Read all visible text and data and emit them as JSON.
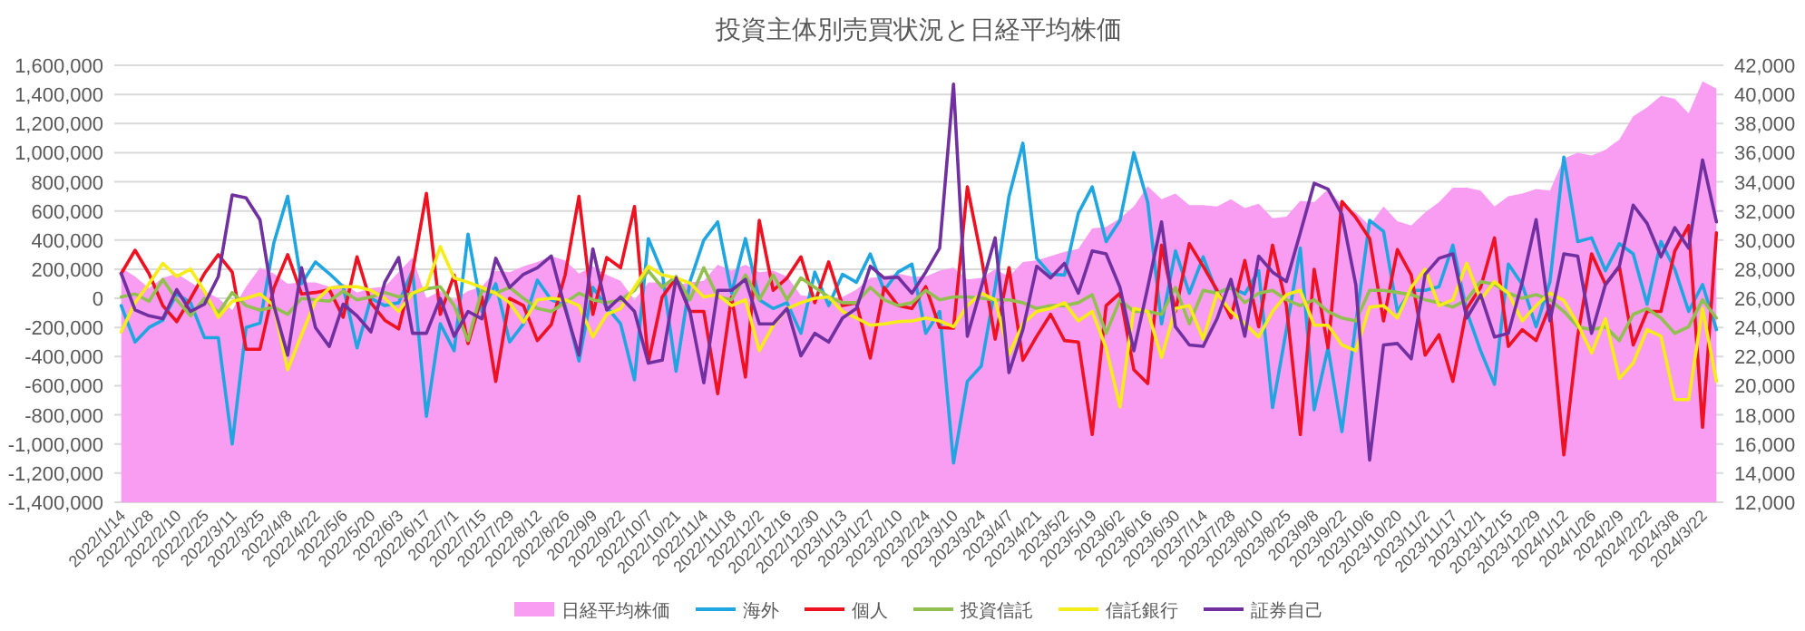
{
  "chart_data": {
    "type": "line",
    "title": "投資主体別売買状況と日経平均株価",
    "categories": [
      "2022/1/14",
      null,
      "2022/1/28",
      null,
      "2022/2/10",
      null,
      "2022/2/25",
      null,
      "2022/3/11",
      null,
      "2022/3/25",
      null,
      "2022/4/8",
      null,
      "2022/4/22",
      null,
      "2022/5/6",
      null,
      "2022/5/20",
      null,
      "2022/6/3",
      null,
      "2022/6/17",
      null,
      "2022/7/1",
      null,
      "2022/7/15",
      null,
      "2022/7/29",
      null,
      "2022/8/12",
      null,
      "2022/8/26",
      null,
      "2022/9/9",
      null,
      "2022/9/22",
      null,
      "2022/10/7",
      null,
      "2022/10/21",
      null,
      "2022/11/4",
      null,
      "2022/11/18",
      null,
      "2022/12/2",
      null,
      "2022/12/16",
      null,
      "2022/12/30",
      null,
      "2023/1/13",
      null,
      "2023/1/27",
      null,
      "2023/2/10",
      null,
      "2023/2/24",
      null,
      "2023/3/10",
      null,
      "2023/3/24",
      null,
      "2023/4/7",
      null,
      "2023/4/21",
      null,
      "2023/5/2",
      null,
      "2023/5/19",
      null,
      "2023/6/2",
      null,
      "2023/6/16",
      null,
      "2023/6/30",
      null,
      "2023/7/14",
      null,
      "2023/7/28",
      null,
      "2023/8/10",
      null,
      "2023/8/25",
      null,
      "2023/9/8",
      null,
      "2023/9/22",
      null,
      "2023/10/6",
      null,
      "2023/10/20",
      null,
      "2023/11/2",
      null,
      "2023/11/17",
      null,
      "2023/12/1",
      null,
      "2023/12/15",
      null,
      "2023/12/29",
      null,
      "2024/1/12",
      null,
      "2024/1/26",
      null,
      "2024/2/9",
      null,
      "2024/2/22",
      null,
      "2024/3/8",
      null,
      "2024/3/22",
      null
    ],
    "ylim": [
      -1400000,
      1600000
    ],
    "yticks": [
      {
        "value": -1400000,
        "label": "-1,400,000"
      },
      {
        "value": -1200000,
        "label": "-1,200,000"
      },
      {
        "value": -1000000,
        "label": "-1,000,000"
      },
      {
        "value": -800000,
        "label": "-800,000"
      },
      {
        "value": -600000,
        "label": "-600,000"
      },
      {
        "value": -400000,
        "label": "-400,000"
      },
      {
        "value": -200000,
        "label": "-200,000"
      },
      0,
      {
        "value": 200000,
        "label": "200,000"
      },
      {
        "value": 400000,
        "label": "400,000"
      },
      {
        "value": 600000,
        "label": "600,000"
      },
      {
        "value": 800000,
        "label": "800,000"
      },
      {
        "value": 1000000,
        "label": "1,000,000"
      },
      {
        "value": 1200000,
        "label": "1,200,000"
      },
      {
        "value": 1400000,
        "label": "1,400,000"
      },
      {
        "value": 1600000,
        "label": "1,600,000"
      }
    ],
    "y2lim": [
      12000,
      42000
    ],
    "y2ticks": [
      {
        "value": 12000,
        "label": "12,000"
      },
      {
        "value": 14000,
        "label": "14,000"
      },
      {
        "value": 16000,
        "label": "16,000"
      },
      {
        "value": 18000,
        "label": "18,000"
      },
      {
        "value": 20000,
        "label": "20,000"
      },
      {
        "value": 22000,
        "label": "22,000"
      },
      {
        "value": 24000,
        "label": "24,000"
      },
      {
        "value": 26000,
        "label": "26,000"
      },
      {
        "value": 28000,
        "label": "28,000"
      },
      {
        "value": 30000,
        "label": "30,000"
      },
      {
        "value": 32000,
        "label": "32,000"
      },
      {
        "value": 34000,
        "label": "34,000"
      },
      {
        "value": 36000,
        "label": "36,000"
      },
      {
        "value": 38000,
        "label": "38,000"
      },
      {
        "value": 40000,
        "label": "40,000"
      },
      {
        "value": 42000,
        "label": "42,000"
      }
    ],
    "grid": "y",
    "legend": "bottom",
    "marker": "none",
    "line_style": "solid",
    "series": [
      {
        "name": "日経平均株価",
        "type": "area",
        "axis": "y2",
        "color": "#f99df2",
        "values": [
          28100,
          27500,
          26700,
          27400,
          27700,
          27100,
          26500,
          26000,
          25200,
          26800,
          28100,
          27700,
          27000,
          27100,
          27100,
          26800,
          27000,
          26400,
          26700,
          26800,
          27800,
          28800,
          26000,
          26500,
          25900,
          26500,
          26800,
          27900,
          27800,
          28200,
          28500,
          28900,
          28600,
          27700,
          28200,
          27600,
          27200,
          25900,
          27100,
          27100,
          26900,
          27100,
          27200,
          28300,
          27900,
          28300,
          27800,
          27900,
          27500,
          26200,
          26100,
          26000,
          26100,
          26600,
          27400,
          27500,
          27700,
          27500,
          27500,
          27900,
          28100,
          27300,
          27400,
          28000,
          27500,
          28500,
          28600,
          28900,
          29200,
          29400,
          30800,
          30900,
          31500,
          32300,
          33700,
          32800,
          33200,
          32400,
          32400,
          32300,
          32800,
          32200,
          32500,
          31500,
          31600,
          32700,
          32600,
          33500,
          32400,
          31900,
          31000,
          32300,
          31300,
          31000,
          31900,
          32600,
          33600,
          33600,
          33400,
          32300,
          33000,
          33200,
          33500,
          33400,
          35600,
          36000,
          35800,
          36200,
          36900,
          38500,
          39100,
          39900,
          39700,
          38700,
          40900,
          40400
        ]
      },
      {
        "name": "海外",
        "color": "#1fa6e0",
        "values": [
          -50000,
          -300000,
          -200000,
          -150000,
          30000,
          -30000,
          -270000,
          -270000,
          -1000000,
          -200000,
          -170000,
          380000,
          700000,
          100000,
          250000,
          170000,
          80000,
          -340000,
          0,
          -50000,
          -30000,
          190000,
          -810000,
          -175000,
          -360000,
          440000,
          -90000,
          100000,
          -300000,
          -175000,
          125000,
          -10000,
          -50000,
          -430000,
          75000,
          -60000,
          -175000,
          -560000,
          410000,
          180000,
          -500000,
          115000,
          400000,
          525000,
          35000,
          410000,
          -10000,
          -70000,
          -30000,
          -240000,
          180000,
          -50000,
          165000,
          110000,
          305000,
          55000,
          180000,
          235000,
          -240000,
          -90000,
          -1130000,
          -570000,
          -465000,
          75000,
          700000,
          1065000,
          275000,
          165000,
          160000,
          585000,
          765000,
          390000,
          535000,
          1000000,
          660000,
          -175000,
          325000,
          35000,
          285000,
          35000,
          75000,
          30000,
          190000,
          -750000,
          -215000,
          345000,
          -765000,
          -340000,
          -915000,
          -175000,
          535000,
          460000,
          -90000,
          55000,
          55000,
          80000,
          365000,
          -90000,
          -360000,
          -590000,
          235000,
          95000,
          -195000,
          115000,
          970000,
          390000,
          415000,
          190000,
          375000,
          305000,
          -40000,
          390000,
          200000,
          -90000,
          95000,
          -215000
        ]
      },
      {
        "name": "個人",
        "color": "#ee1122",
        "values": [
          170000,
          330000,
          170000,
          -50000,
          -160000,
          0,
          170000,
          300000,
          180000,
          -350000,
          -350000,
          70000,
          300000,
          30000,
          40000,
          60000,
          -130000,
          285000,
          -30000,
          -150000,
          -210000,
          180000,
          720000,
          -110000,
          160000,
          -310000,
          10000,
          -570000,
          0,
          -50000,
          -290000,
          -180000,
          160000,
          700000,
          -110000,
          280000,
          210000,
          630000,
          -440000,
          10000,
          140000,
          -90000,
          -90000,
          -655000,
          10000,
          -540000,
          535000,
          55000,
          140000,
          285000,
          -30000,
          250000,
          -50000,
          -30000,
          -410000,
          75000,
          -50000,
          -70000,
          80000,
          -200000,
          -205000,
          765000,
          285000,
          -280000,
          210000,
          -425000,
          -260000,
          -110000,
          -290000,
          -300000,
          -935000,
          -50000,
          35000,
          -490000,
          -585000,
          365000,
          -90000,
          375000,
          220000,
          55000,
          -135000,
          260000,
          -195000,
          365000,
          -50000,
          -935000,
          200000,
          -340000,
          665000,
          555000,
          410000,
          -155000,
          335000,
          160000,
          -390000,
          -250000,
          -570000,
          -70000,
          75000,
          415000,
          -330000,
          -215000,
          -290000,
          -50000,
          -1075000,
          -260000,
          305000,
          95000,
          220000,
          -320000,
          -90000,
          -90000,
          325000,
          500000,
          -885000,
          450000
        ]
      },
      {
        "name": "投資信託",
        "color": "#92c050",
        "values": [
          10000,
          30000,
          -20000,
          130000,
          -10000,
          -120000,
          0,
          -100000,
          40000,
          -50000,
          -80000,
          -60000,
          -110000,
          0,
          -10000,
          -20000,
          50000,
          -10000,
          10000,
          40000,
          10000,
          35000,
          65000,
          80000,
          -50000,
          -290000,
          55000,
          35000,
          75000,
          0,
          -70000,
          -90000,
          -30000,
          35000,
          -10000,
          -30000,
          -10000,
          55000,
          190000,
          75000,
          150000,
          -10000,
          210000,
          10000,
          -10000,
          160000,
          -10000,
          160000,
          -10000,
          140000,
          75000,
          10000,
          -30000,
          -30000,
          75000,
          -10000,
          -50000,
          -30000,
          55000,
          -10000,
          10000,
          10000,
          0,
          -10000,
          -10000,
          -30000,
          -70000,
          -50000,
          -50000,
          -30000,
          25000,
          -240000,
          -10000,
          -90000,
          -90000,
          -110000,
          75000,
          -175000,
          55000,
          35000,
          75000,
          -30000,
          35000,
          55000,
          -10000,
          -50000,
          -10000,
          -90000,
          -135000,
          -155000,
          55000,
          55000,
          40000,
          25000,
          -10000,
          -30000,
          -60000,
          -10000,
          115000,
          95000,
          35000,
          0,
          25000,
          -10000,
          -90000,
          -195000,
          -215000,
          -195000,
          -290000,
          -110000,
          -70000,
          -135000,
          -240000,
          -195000,
          -10000,
          -135000
        ]
      },
      {
        "name": "信託銀行",
        "color": "#f6ec1a",
        "values": [
          -230000,
          -30000,
          100000,
          240000,
          150000,
          200000,
          50000,
          -130000,
          -20000,
          0,
          30000,
          -50000,
          -490000,
          -250000,
          -20000,
          70000,
          80000,
          80000,
          55000,
          0,
          -90000,
          35000,
          75000,
          355000,
          140000,
          110000,
          75000,
          35000,
          -30000,
          -165000,
          -10000,
          0,
          -10000,
          -50000,
          -265000,
          -110000,
          -70000,
          75000,
          220000,
          160000,
          140000,
          105000,
          10000,
          25000,
          -50000,
          -10000,
          -360000,
          -185000,
          -70000,
          -30000,
          0,
          10000,
          -90000,
          -135000,
          -185000,
          -175000,
          -160000,
          -155000,
          -135000,
          -155000,
          -195000,
          -50000,
          35000,
          -10000,
          -385000,
          -175000,
          -90000,
          -70000,
          -30000,
          -155000,
          -90000,
          -340000,
          -745000,
          -70000,
          -90000,
          -405000,
          -70000,
          -50000,
          -280000,
          35000,
          -90000,
          -175000,
          -265000,
          -90000,
          25000,
          55000,
          -185000,
          -185000,
          -320000,
          -360000,
          -60000,
          -50000,
          -135000,
          75000,
          200000,
          -50000,
          -10000,
          240000,
          -10000,
          115000,
          35000,
          -155000,
          -50000,
          35000,
          -15000,
          -175000,
          -375000,
          -140000,
          -550000,
          -445000,
          -215000,
          -260000,
          -695000,
          -695000,
          -70000,
          -570000
        ]
      },
      {
        "name": "証券自己",
        "color": "#7030a0",
        "values": [
          170000,
          -80000,
          -120000,
          -140000,
          60000,
          -90000,
          -40000,
          150000,
          710000,
          690000,
          540000,
          -50000,
          -390000,
          210000,
          -200000,
          -330000,
          -40000,
          -120000,
          -230000,
          110000,
          280000,
          -240000,
          -240000,
          0,
          -260000,
          -90000,
          -140000,
          275000,
          75000,
          165000,
          210000,
          290000,
          -70000,
          -390000,
          340000,
          -80000,
          10000,
          -90000,
          -445000,
          -425000,
          140000,
          -90000,
          -580000,
          55000,
          55000,
          130000,
          -175000,
          -175000,
          -70000,
          -395000,
          -240000,
          -300000,
          -135000,
          -70000,
          220000,
          140000,
          145000,
          35000,
          180000,
          345000,
          1470000,
          -260000,
          75000,
          415000,
          -510000,
          -215000,
          220000,
          140000,
          240000,
          35000,
          325000,
          305000,
          75000,
          -360000,
          75000,
          525000,
          -195000,
          -320000,
          -330000,
          -140000,
          130000,
          -260000,
          290000,
          180000,
          115000,
          450000,
          790000,
          750000,
          575000,
          95000,
          -1110000,
          -320000,
          -310000,
          -415000,
          165000,
          275000,
          305000,
          -135000,
          25000,
          -265000,
          -240000,
          110000,
          540000,
          -155000,
          305000,
          290000,
          -240000,
          95000,
          220000,
          640000,
          515000,
          285000,
          485000,
          345000,
          950000,
          525000
        ]
      }
    ]
  }
}
